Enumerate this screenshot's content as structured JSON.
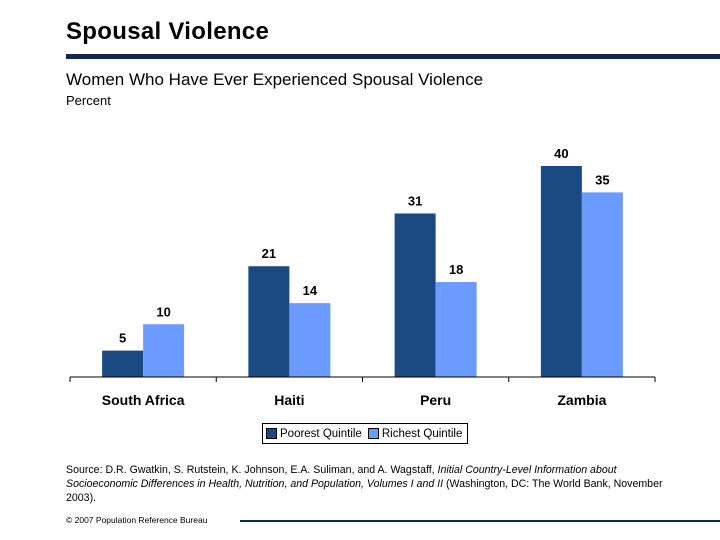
{
  "slide": {
    "title": "Spousal Violence",
    "footer": "© 2007 Population Reference Bureau"
  },
  "source": {
    "prefix": "Source: D.R. Gwatkin, S. Rutstein, K. Johnson, E.A. Suliman, and A. Wagstaff, ",
    "italic": "Initial Country-Level Information about Socioeconomic Differences in Health, Nutrition, and Population, Volumes I and II",
    "suffix": " (Washington, DC: The World Bank, November 2003)."
  },
  "chart_data": {
    "type": "bar",
    "title": "Women Who Have Ever Experienced Spousal Violence",
    "subtitle": "Percent",
    "categories": [
      "South Africa",
      "Haiti",
      "Peru",
      "Zambia"
    ],
    "series": [
      {
        "name": "Poorest Quintile",
        "values": [
          5,
          21,
          31,
          40
        ],
        "color": "#1b4a82"
      },
      {
        "name": "Richest Quintile",
        "values": [
          10,
          14,
          18,
          35
        ],
        "color": "#6b9bff"
      }
    ],
    "ylim": [
      0,
      40
    ],
    "grid": false,
    "legend_position": "bottom",
    "data_labels": true
  }
}
